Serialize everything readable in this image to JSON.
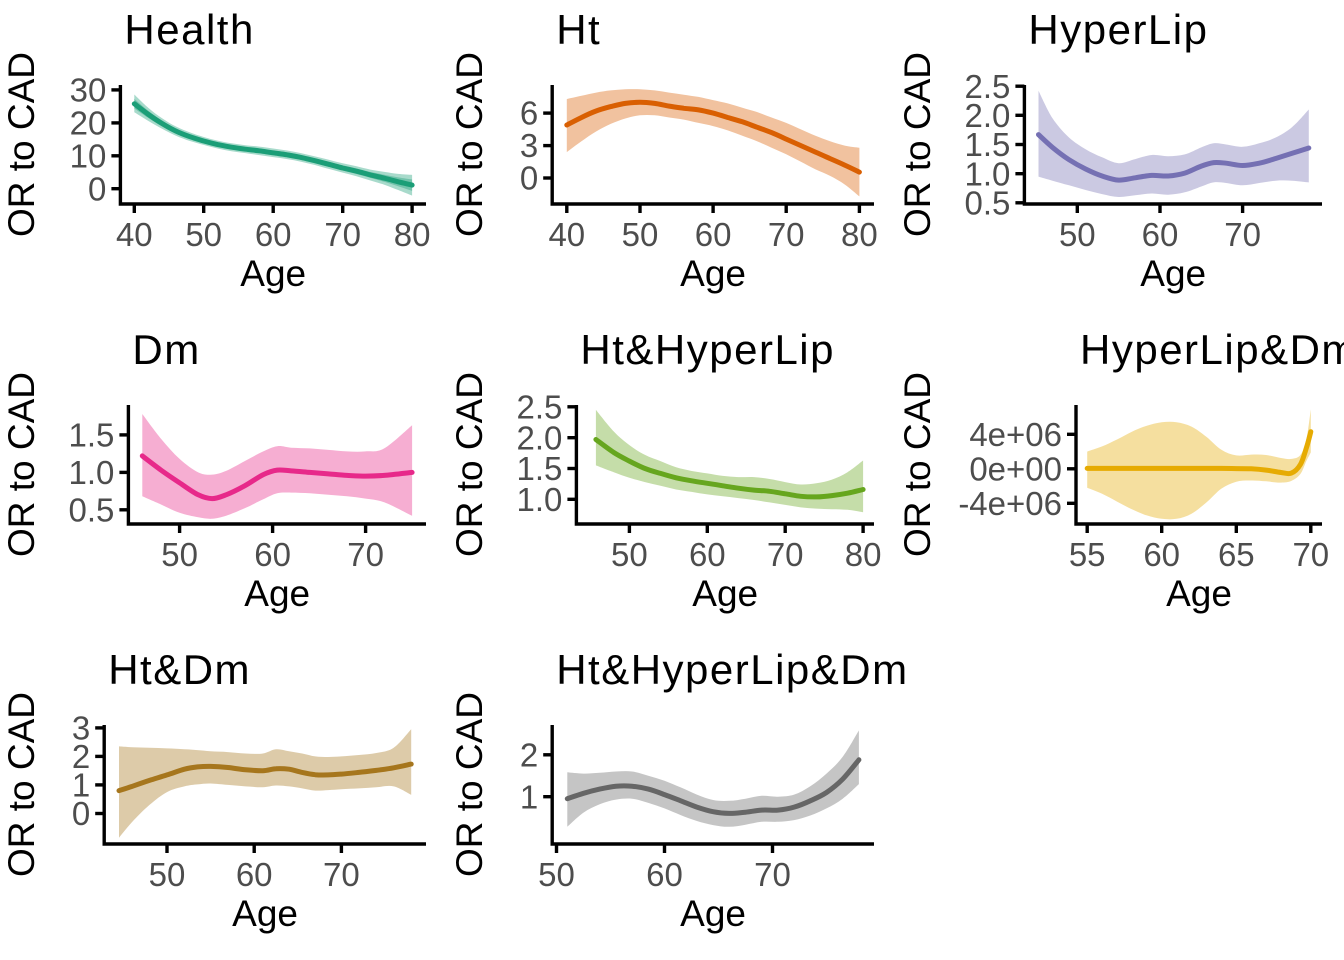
{
  "figure": {
    "xlabel": "Age",
    "ylabel": "OR to CAD",
    "title_color": "#000000",
    "axis_title_color": "#000000",
    "tick_label_color": "#4d4d4d",
    "axis_line_color": "#000000",
    "band_opacity": 0.38
  },
  "chart_data": [
    {
      "type": "line",
      "title": "Health",
      "xlabel": "Age",
      "ylabel": "OR to CAD",
      "color": "#1B9E77",
      "x_ticks": [
        40,
        50,
        60,
        70,
        80
      ],
      "y_ticks": [
        0,
        10,
        20,
        30
      ],
      "y_tick_labels": [
        "0",
        "10",
        "20",
        "30"
      ],
      "xlim": [
        38,
        82
      ],
      "ylim": [
        -4.65,
        31.5
      ],
      "inner_ci_factor": 0.55,
      "x": [
        40,
        42,
        44,
        46,
        48,
        50,
        52,
        54,
        56,
        58,
        60,
        62,
        64,
        66,
        68,
        70,
        72,
        74,
        76,
        78,
        80
      ],
      "y": [
        25.8,
        22.6,
        19.8,
        17.5,
        15.8,
        14.5,
        13.4,
        12.6,
        12.0,
        11.5,
        10.9,
        10.3,
        9.5,
        8.5,
        7.4,
        6.3,
        5.3,
        4.2,
        3.2,
        2.1,
        1.1
      ],
      "hi": [
        28.6,
        24.6,
        21.4,
        18.9,
        17.1,
        15.7,
        14.6,
        13.8,
        13.2,
        12.8,
        12.2,
        11.6,
        10.8,
        9.8,
        8.8,
        7.7,
        6.8,
        5.8,
        5.1,
        4.5,
        4.2
      ],
      "lo": [
        23.2,
        20.6,
        18.2,
        16.1,
        14.5,
        13.3,
        12.2,
        11.4,
        10.8,
        10.2,
        9.6,
        9.0,
        8.2,
        7.2,
        6.0,
        4.9,
        3.8,
        2.5,
        1.2,
        -0.4,
        -2.1
      ]
    },
    {
      "type": "line",
      "title": "Ht",
      "xlabel": "Age",
      "ylabel": "OR to CAD",
      "color": "#D95F02",
      "x_ticks": [
        40,
        50,
        60,
        70,
        80
      ],
      "y_ticks": [
        0,
        3,
        6
      ],
      "y_tick_labels": [
        "0",
        "3",
        "6"
      ],
      "xlim": [
        38,
        82
      ],
      "ylim": [
        -2.4,
        8.6
      ],
      "x": [
        40,
        42,
        44,
        46,
        48,
        50,
        52,
        54,
        56,
        58,
        60,
        62,
        64,
        66,
        68,
        70,
        72,
        74,
        76,
        78,
        80
      ],
      "y": [
        4.9,
        5.6,
        6.2,
        6.6,
        6.9,
        7.0,
        6.9,
        6.65,
        6.45,
        6.3,
        6.0,
        5.6,
        5.2,
        4.7,
        4.2,
        3.6,
        3.0,
        2.4,
        1.8,
        1.2,
        0.55
      ],
      "hi": [
        7.3,
        7.6,
        7.9,
        8.1,
        8.2,
        8.2,
        8.1,
        7.9,
        7.7,
        7.5,
        7.2,
        6.9,
        6.5,
        6.1,
        5.6,
        5.1,
        4.5,
        3.9,
        3.4,
        3.0,
        2.8
      ],
      "lo": [
        2.4,
        3.4,
        4.3,
        5.0,
        5.5,
        5.8,
        5.8,
        5.6,
        5.4,
        5.1,
        4.8,
        4.4,
        3.9,
        3.4,
        2.8,
        2.2,
        1.5,
        0.8,
        0.2,
        -0.6,
        -1.7
      ]
    },
    {
      "type": "line",
      "title": "HyperLip",
      "xlabel": "Age",
      "ylabel": "OR to CAD",
      "color": "#7570B3",
      "x_ticks": [
        50,
        60,
        70
      ],
      "y_ticks": [
        0.5,
        1.0,
        1.5,
        2.0,
        2.5
      ],
      "y_tick_labels": [
        "0.5",
        "1.0",
        "1.5",
        "2.0",
        "2.5"
      ],
      "xlim": [
        43.6,
        79.6
      ],
      "ylim": [
        0.48,
        2.52
      ],
      "x": [
        45.3,
        47,
        49,
        51,
        53,
        55,
        57,
        59,
        61,
        63,
        65,
        66.5,
        68,
        70,
        72,
        74,
        76,
        78
      ],
      "y": [
        1.67,
        1.45,
        1.24,
        1.08,
        0.96,
        0.89,
        0.93,
        0.97,
        0.96,
        1.01,
        1.13,
        1.19,
        1.18,
        1.14,
        1.18,
        1.26,
        1.35,
        1.44
      ],
      "hi": [
        2.42,
        1.95,
        1.62,
        1.42,
        1.28,
        1.18,
        1.25,
        1.32,
        1.3,
        1.33,
        1.45,
        1.52,
        1.5,
        1.46,
        1.52,
        1.62,
        1.8,
        2.1
      ],
      "lo": [
        0.95,
        0.88,
        0.8,
        0.72,
        0.65,
        0.6,
        0.63,
        0.66,
        0.64,
        0.68,
        0.78,
        0.85,
        0.84,
        0.8,
        0.84,
        0.88,
        0.88,
        0.85
      ]
    },
    {
      "type": "line",
      "title": "Dm",
      "xlabel": "Age",
      "ylabel": "OR to CAD",
      "color": "#E7298A",
      "x_ticks": [
        50,
        60,
        70
      ],
      "y_ticks": [
        0.5,
        1.0,
        1.5
      ],
      "y_tick_labels": [
        "0.5",
        "1.0",
        "1.5"
      ],
      "xlim": [
        44.5,
        76.5
      ],
      "ylim": [
        0.31,
        1.9
      ],
      "x": [
        46,
        48,
        50,
        52,
        53.5,
        55,
        57,
        59,
        60.5,
        62,
        64,
        66,
        68,
        70,
        72,
        75
      ],
      "y": [
        1.22,
        1.03,
        0.86,
        0.7,
        0.65,
        0.7,
        0.82,
        0.97,
        1.03,
        1.02,
        1.0,
        0.98,
        0.96,
        0.95,
        0.96,
        1.0
      ],
      "hi": [
        1.78,
        1.45,
        1.18,
        1.0,
        0.97,
        1.02,
        1.15,
        1.28,
        1.35,
        1.33,
        1.32,
        1.3,
        1.28,
        1.28,
        1.32,
        1.63
      ],
      "lo": [
        0.68,
        0.57,
        0.46,
        0.4,
        0.38,
        0.42,
        0.52,
        0.64,
        0.72,
        0.73,
        0.72,
        0.7,
        0.68,
        0.65,
        0.6,
        0.42
      ]
    },
    {
      "type": "line",
      "title": "Ht&HyperLip",
      "xlabel": "Age",
      "ylabel": "OR to CAD",
      "color": "#66A61E",
      "x_ticks": [
        50,
        60,
        70,
        80
      ],
      "y_ticks": [
        1.0,
        1.5,
        2.0,
        2.5
      ],
      "y_tick_labels": [
        "1.0",
        "1.5",
        "2.0",
        "2.5"
      ],
      "xlim": [
        43.2,
        81.4
      ],
      "ylim": [
        0.6,
        2.53
      ],
      "x": [
        45.7,
        48,
        50,
        52,
        54,
        56,
        58,
        60,
        62,
        64,
        66,
        68,
        70,
        72,
        74,
        76,
        78,
        80
      ],
      "y": [
        1.97,
        1.76,
        1.62,
        1.5,
        1.42,
        1.35,
        1.3,
        1.26,
        1.22,
        1.18,
        1.15,
        1.13,
        1.09,
        1.05,
        1.04,
        1.06,
        1.1,
        1.16
      ],
      "hi": [
        2.45,
        2.1,
        1.88,
        1.72,
        1.62,
        1.52,
        1.46,
        1.42,
        1.38,
        1.36,
        1.36,
        1.33,
        1.28,
        1.24,
        1.26,
        1.32,
        1.44,
        1.63
      ],
      "lo": [
        1.55,
        1.44,
        1.35,
        1.28,
        1.22,
        1.16,
        1.12,
        1.08,
        1.05,
        1.02,
        0.99,
        0.95,
        0.91,
        0.87,
        0.85,
        0.84,
        0.83,
        0.79
      ]
    },
    {
      "type": "line",
      "title": "HyperLip&Dm",
      "xlabel": "Age",
      "ylabel": "OR to CAD",
      "color": "#E6AB02",
      "x_ticks": [
        55,
        60,
        65,
        70
      ],
      "y_ticks": [
        -4000000,
        0,
        4000000
      ],
      "y_tick_labels": [
        "-4e+06",
        "0e+00",
        "4e+06"
      ],
      "xlim": [
        54.25,
        70.75
      ],
      "ylim": [
        -6400000,
        7400000
      ],
      "x": [
        55,
        56,
        57,
        58,
        59,
        60,
        61,
        62,
        63,
        64,
        65,
        66,
        67,
        68,
        68.7,
        69.3,
        69.7,
        70
      ],
      "y": [
        50000,
        50000,
        50000,
        50000,
        50000,
        50000,
        50000,
        50000,
        50000,
        50000,
        30000,
        0,
        -150000,
        -430000,
        -500000,
        500000,
        2400000,
        4300000
      ],
      "hi": [
        2000000,
        2600000,
        3400000,
        4300000,
        5000000,
        5400000,
        5400000,
        4900000,
        3700000,
        2200000,
        1550000,
        1650000,
        1600000,
        1250000,
        1150000,
        1600000,
        3400000,
        6900000
      ],
      "lo": [
        -2200000,
        -2900000,
        -3800000,
        -4700000,
        -5400000,
        -5800000,
        -5800000,
        -5200000,
        -3900000,
        -2300000,
        -1500000,
        -1350000,
        -1450000,
        -1600000,
        -1400000,
        -600000,
        900000,
        1900000
      ]
    },
    {
      "type": "line",
      "title": "Ht&Dm",
      "xlabel": "Age",
      "ylabel": "OR to CAD",
      "color": "#A6761D",
      "x_ticks": [
        50,
        60,
        70
      ],
      "y_ticks": [
        0,
        1,
        2,
        3
      ],
      "y_tick_labels": [
        "0",
        "1",
        "2",
        "3"
      ],
      "xlim": [
        42.8,
        79.7
      ],
      "ylim": [
        -1.07,
        3.1
      ],
      "x": [
        44.5,
        46,
        48,
        50,
        52,
        53.5,
        55,
        57,
        59,
        61,
        62.5,
        64,
        65.5,
        67,
        68.5,
        70,
        72,
        74,
        76,
        78
      ],
      "y": [
        0.8,
        0.95,
        1.16,
        1.35,
        1.55,
        1.63,
        1.65,
        1.61,
        1.53,
        1.5,
        1.57,
        1.55,
        1.44,
        1.36,
        1.35,
        1.38,
        1.44,
        1.51,
        1.6,
        1.73
      ],
      "hi": [
        2.35,
        2.32,
        2.3,
        2.28,
        2.25,
        2.22,
        2.18,
        2.15,
        2.1,
        2.1,
        2.25,
        2.18,
        2.1,
        2.0,
        1.98,
        2.0,
        2.05,
        2.12,
        2.3,
        2.95
      ],
      "lo": [
        -0.85,
        -0.3,
        0.3,
        0.75,
        0.95,
        1.02,
        1.05,
        1.0,
        0.95,
        0.92,
        0.98,
        0.95,
        0.88,
        0.8,
        0.82,
        0.85,
        0.88,
        0.92,
        0.95,
        0.65
      ]
    },
    {
      "type": "line",
      "title": "Ht&HyperLip&Dm",
      "xlabel": "Age",
      "ylabel": "OR to CAD",
      "color": "#666666",
      "x_ticks": [
        50,
        60,
        70
      ],
      "y_ticks": [
        1,
        2
      ],
      "y_tick_labels": [
        "1",
        "2"
      ],
      "xlim": [
        49.6,
        79.4
      ],
      "ylim": [
        -0.13,
        2.71
      ],
      "x": [
        51,
        52.5,
        54,
        55.5,
        57,
        58.5,
        60,
        61.5,
        63,
        64.5,
        66,
        67.5,
        69,
        70.5,
        72,
        73.5,
        75,
        76.5,
        78
      ],
      "y": [
        0.95,
        1.08,
        1.18,
        1.25,
        1.25,
        1.18,
        1.05,
        0.9,
        0.75,
        0.64,
        0.6,
        0.63,
        0.68,
        0.68,
        0.75,
        0.9,
        1.1,
        1.42,
        1.88
      ],
      "hi": [
        1.58,
        1.55,
        1.57,
        1.6,
        1.6,
        1.5,
        1.38,
        1.22,
        1.05,
        0.92,
        0.9,
        0.95,
        1.02,
        1.0,
        1.05,
        1.25,
        1.55,
        1.95,
        2.58
      ],
      "lo": [
        0.28,
        0.62,
        0.82,
        0.93,
        0.95,
        0.85,
        0.72,
        0.56,
        0.42,
        0.32,
        0.28,
        0.33,
        0.4,
        0.4,
        0.44,
        0.55,
        0.72,
        0.95,
        1.3
      ]
    }
  ]
}
